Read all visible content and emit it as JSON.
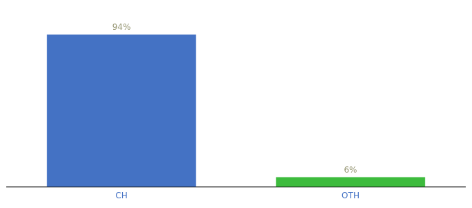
{
  "chart_data": {
    "type": "bar",
    "categories": [
      "CH",
      "OTH"
    ],
    "values": [
      94,
      6
    ],
    "value_labels": [
      "94%",
      "6%"
    ],
    "colors": [
      "#4472c4",
      "#3dbb3d"
    ],
    "ylim": [
      0,
      105
    ],
    "grid": false,
    "data_labels": true,
    "tick_labels": "x"
  }
}
